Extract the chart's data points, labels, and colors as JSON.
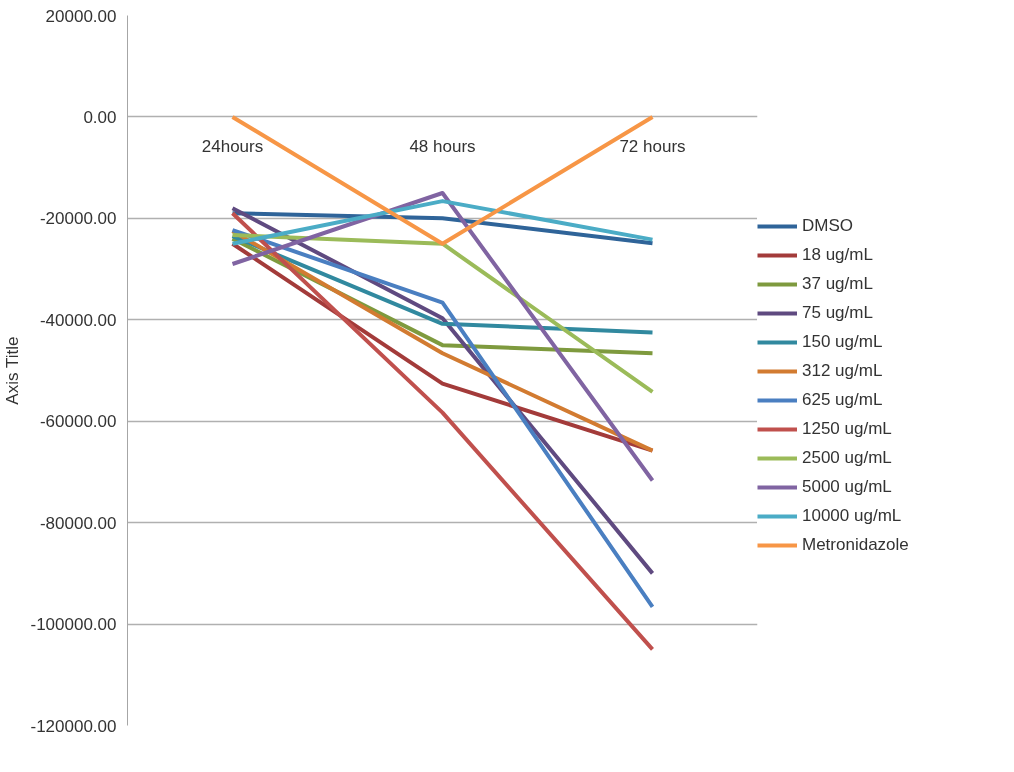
{
  "chart_data": {
    "type": "line",
    "ylabel": "Axis Title",
    "categories": [
      "24hours",
      "48 hours",
      "72 hours"
    ],
    "ylim": [
      -120000,
      20000
    ],
    "yticks": [
      {
        "value": -120000,
        "label": "-120000.00"
      },
      {
        "value": -100000,
        "label": "-100000.00"
      },
      {
        "value": -80000,
        "label": "-80000.00"
      },
      {
        "value": -60000,
        "label": "-60000.00"
      },
      {
        "value": -40000,
        "label": "-40000.00"
      },
      {
        "value": -20000,
        "label": "-20000.00"
      },
      {
        "value": 0,
        "label": "0.00"
      },
      {
        "value": 20000,
        "label": "20000.00"
      }
    ],
    "grid": "y",
    "legend": "right",
    "marker": "none",
    "line_style": "solid",
    "series": [
      {
        "name": "DMSO",
        "color": "#2f6499",
        "values": [
          -19000,
          -20000,
          -24900
        ]
      },
      {
        "name": "18 ug/mL",
        "color": "#a33b3a",
        "values": [
          -25000,
          -52600,
          -65800
        ]
      },
      {
        "name": "37 ug/mL",
        "color": "#7e9a3e",
        "values": [
          -24000,
          -45000,
          -46600
        ]
      },
      {
        "name": "75 ug/mL",
        "color": "#5f4a80",
        "values": [
          -18000,
          -39700,
          -90000
        ]
      },
      {
        "name": "150 ug/mL",
        "color": "#31899f",
        "values": [
          -23500,
          -40800,
          -42500
        ]
      },
      {
        "name": "312 ug/mL",
        "color": "#d27b31",
        "values": [
          -22500,
          -46600,
          -65800
        ]
      },
      {
        "name": "625 ug/mL",
        "color": "#4a7fc1",
        "values": [
          -22300,
          -36600,
          -96600
        ]
      },
      {
        "name": "1250 ug/mL",
        "color": "#c0504d",
        "values": [
          -19000,
          -58300,
          -105000
        ]
      },
      {
        "name": "2500 ug/mL",
        "color": "#9bbb59",
        "values": [
          -23300,
          -25000,
          -54200
        ]
      },
      {
        "name": "5000 ug/mL",
        "color": "#8064a2",
        "values": [
          -29000,
          -15000,
          -71700
        ]
      },
      {
        "name": "10000 ug/mL",
        "color": "#4bacc6",
        "values": [
          -25000,
          -16600,
          -24200
        ]
      },
      {
        "name": "Metronidazole",
        "color": "#f79646",
        "values": [
          0,
          -25000,
          0
        ]
      }
    ]
  }
}
